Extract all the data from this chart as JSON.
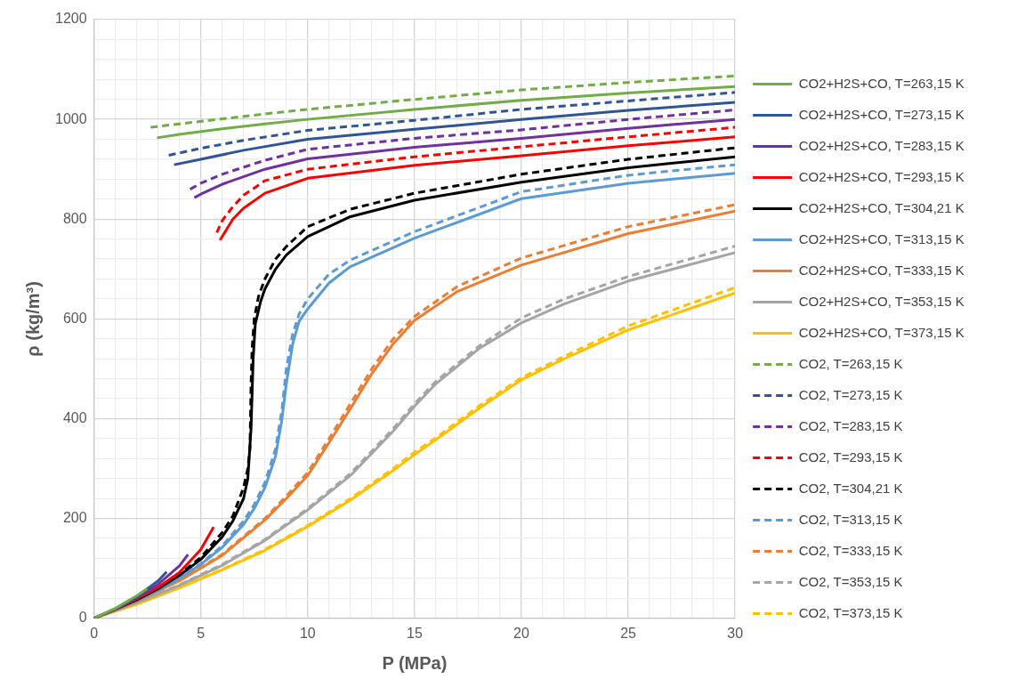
{
  "chart_data": {
    "type": "line",
    "xlabel": "P (MPa)",
    "ylabel": "ρ (kg/m³)",
    "xlim": [
      0,
      30
    ],
    "ylim": [
      0,
      1200
    ],
    "xticks": [
      0,
      {
        "value": 1,
        "label": null
      },
      {
        "value": 2,
        "label": null
      },
      {
        "value": 3,
        "label": null
      },
      {
        "value": 4,
        "label": null
      },
      5,
      {
        "value": 6,
        "label": null
      },
      {
        "value": 7,
        "label": null
      },
      {
        "value": 8,
        "label": null
      },
      {
        "value": 9,
        "label": null
      },
      10,
      {
        "value": 11,
        "label": null
      },
      {
        "value": 12,
        "label": null
      },
      {
        "value": 13,
        "label": null
      },
      {
        "value": 14,
        "label": null
      },
      15,
      {
        "value": 16,
        "label": null
      },
      {
        "value": 17,
        "label": null
      },
      {
        "value": 18,
        "label": null
      },
      {
        "value": 19,
        "label": null
      },
      20,
      {
        "value": 21,
        "label": null
      },
      {
        "value": 22,
        "label": null
      },
      {
        "value": 23,
        "label": null
      },
      {
        "value": 24,
        "label": null
      },
      25,
      {
        "value": 26,
        "label": null
      },
      {
        "value": 27,
        "label": null
      },
      {
        "value": 28,
        "label": null
      },
      {
        "value": 29,
        "label": null
      },
      30
    ],
    "yticks": [
      0,
      {
        "value": 40,
        "label": null
      },
      {
        "value": 80,
        "label": null
      },
      {
        "value": 120,
        "label": null
      },
      {
        "value": 160,
        "label": null
      },
      200,
      {
        "value": 240,
        "label": null
      },
      {
        "value": 280,
        "label": null
      },
      {
        "value": 320,
        "label": null
      },
      {
        "value": 360,
        "label": null
      },
      400,
      {
        "value": 440,
        "label": null
      },
      {
        "value": 480,
        "label": null
      },
      {
        "value": 520,
        "label": null
      },
      {
        "value": 560,
        "label": null
      },
      600,
      {
        "value": 640,
        "label": null
      },
      {
        "value": 680,
        "label": null
      },
      {
        "value": 720,
        "label": null
      },
      {
        "value": 760,
        "label": null
      },
      800,
      {
        "value": 840,
        "label": null
      },
      {
        "value": 880,
        "label": null
      },
      {
        "value": 920,
        "label": null
      },
      {
        "value": 960,
        "label": null
      },
      1000,
      {
        "value": 1040,
        "label": null
      },
      {
        "value": 1080,
        "label": null
      },
      {
        "value": 1120,
        "label": null
      },
      {
        "value": 1160,
        "label": null
      },
      1200
    ],
    "grid": true,
    "legend": "right",
    "marker": "none",
    "series": [
      {
        "name": "CO2+H2S+CO, T=263,15 K",
        "color": "#70ad47",
        "line_style": "solid",
        "x": [
          0,
          1,
          2,
          2.5,
          null,
          2.95,
          4,
          6,
          8,
          10,
          15,
          20,
          25,
          30
        ],
        "values": [
          0,
          20,
          45,
          60,
          null,
          963,
          970,
          981,
          991,
          1000,
          1020,
          1038,
          1053,
          1066
        ]
      },
      {
        "name": "CO2+H2S+CO, T=273,15 K",
        "color": "#2f5597",
        "line_style": "solid",
        "x": [
          0,
          1,
          2,
          3,
          3.4,
          null,
          3.75,
          5,
          7,
          10,
          15,
          20,
          25,
          30
        ],
        "values": [
          0,
          19,
          43,
          75,
          93,
          null,
          909,
          920,
          938,
          960,
          980,
          1000,
          1018,
          1034
        ]
      },
      {
        "name": "CO2+H2S+CO, T=283,15 K",
        "color": "#7030a0",
        "line_style": "solid",
        "x": [
          0,
          1,
          2,
          3,
          4,
          4.4,
          null,
          4.7,
          5,
          6,
          8,
          10,
          15,
          20,
          25,
          30
        ],
        "values": [
          0,
          19,
          41,
          68,
          105,
          128,
          null,
          843,
          850,
          870,
          900,
          921,
          944,
          962,
          982,
          1000
        ]
      },
      {
        "name": "CO2+H2S+CO, T=293,15 K",
        "color": "#ff0000",
        "line_style": "solid",
        "x": [
          0,
          1,
          2,
          3,
          4,
          5,
          5.6,
          null,
          5.9,
          6.5,
          7,
          8,
          10,
          15,
          20,
          25,
          30
        ],
        "values": [
          0,
          18,
          39,
          62,
          92,
          138,
          183,
          null,
          758,
          800,
          822,
          852,
          882,
          908,
          927,
          947,
          965
        ]
      },
      {
        "name": "CO2+H2S+CO, T=304,21 K",
        "color": "#000000",
        "line_style": "solid",
        "x": [
          0,
          1,
          2,
          3,
          4,
          5,
          6,
          6.5,
          7,
          7.2,
          7.35,
          7.45,
          7.55,
          7.8,
          8,
          8.5,
          9,
          10,
          12,
          15,
          20,
          25,
          30
        ],
        "values": [
          0,
          18,
          37,
          59,
          86,
          118,
          163,
          195,
          240,
          280,
          380,
          520,
          590,
          635,
          660,
          700,
          728,
          765,
          805,
          838,
          874,
          903,
          925
        ]
      },
      {
        "name": "CO2+H2S+CO, T=313,15 K",
        "color": "#5b9bd5",
        "line_style": "solid",
        "x": [
          0,
          1,
          2,
          3,
          4,
          5,
          6,
          7,
          7.5,
          8,
          8.5,
          8.8,
          9,
          9.3,
          9.6,
          10,
          11,
          12,
          15,
          20,
          25,
          30
        ],
        "values": [
          0,
          17,
          36,
          56,
          80,
          108,
          142,
          188,
          220,
          262,
          325,
          400,
          470,
          550,
          595,
          620,
          672,
          705,
          762,
          841,
          872,
          892
        ]
      },
      {
        "name": "CO2+H2S+CO, T=333,15 K",
        "color": "#ed7d31",
        "line_style": "solid",
        "x": [
          0,
          2,
          4,
          6,
          8,
          9,
          10,
          11,
          12,
          13,
          14,
          15,
          17,
          20,
          25,
          30
        ],
        "values": [
          0,
          34,
          75,
          126,
          197,
          240,
          286,
          352,
          420,
          490,
          550,
          597,
          655,
          708,
          771,
          816
        ]
      },
      {
        "name": "CO2+H2S+CO, T=353,15 K",
        "color": "#a5a5a5",
        "line_style": "solid",
        "x": [
          0,
          2,
          4,
          6,
          8,
          10,
          12,
          14,
          15,
          16,
          18,
          20,
          22,
          25,
          30
        ],
        "values": [
          0,
          31,
          66,
          106,
          156,
          217,
          286,
          375,
          425,
          470,
          540,
          592,
          630,
          676,
          733
        ]
      },
      {
        "name": "CO2+H2S+CO, T=373,15 K",
        "color": "#ffc000",
        "line_style": "solid",
        "x": [
          0,
          2,
          4,
          6,
          8,
          10,
          12,
          14,
          15,
          16,
          18,
          20,
          22,
          25,
          30
        ],
        "values": [
          0,
          28,
          61,
          97,
          136,
          184,
          237,
          296,
          328,
          358,
          420,
          478,
          520,
          578,
          652
        ]
      },
      {
        "name": "CO2, T=263,15 K",
        "color": "#70ad47",
        "line_style": "dashed",
        "x": [
          2.65,
          4,
          6,
          8,
          10,
          15,
          20,
          25,
          30
        ],
        "values": [
          984,
          991,
          1001,
          1011,
          1020,
          1040,
          1059,
          1074,
          1087
        ]
      },
      {
        "name": "CO2, T=273,15 K",
        "color": "#2f5597",
        "line_style": "dashed",
        "x": [
          3.5,
          5,
          7,
          10,
          15,
          20,
          25,
          30
        ],
        "values": [
          928,
          942,
          958,
          978,
          998,
          1020,
          1037,
          1054
        ]
      },
      {
        "name": "CO2, T=283,15 K",
        "color": "#7030a0",
        "line_style": "dashed",
        "x": [
          4.5,
          5,
          6,
          8,
          10,
          15,
          20,
          25,
          30
        ],
        "values": [
          860,
          872,
          890,
          918,
          940,
          962,
          979,
          1000,
          1019
        ]
      },
      {
        "name": "CO2, T=293,15 K",
        "color": "#ff0000",
        "line_style": "dashed",
        "x": [
          5.75,
          6,
          6.5,
          7,
          8,
          10,
          15,
          20,
          25,
          30
        ],
        "values": [
          773,
          797,
          825,
          848,
          877,
          900,
          925,
          945,
          965,
          984
        ]
      },
      {
        "name": "CO2, T=304,21 K",
        "color": "#000000",
        "line_style": "dashed",
        "x": [
          0,
          1,
          2,
          3,
          4,
          5,
          6,
          6.5,
          7,
          7.2,
          7.3,
          7.35,
          7.4,
          7.5,
          7.7,
          8,
          8.5,
          9,
          10,
          12,
          15,
          20,
          25,
          30
        ],
        "values": [
          0,
          18,
          38,
          60,
          88,
          122,
          172,
          205,
          262,
          300,
          340,
          467,
          540,
          600,
          645,
          680,
          720,
          745,
          785,
          820,
          852,
          890,
          920,
          943
        ]
      },
      {
        "name": "CO2, T=313,15 K",
        "color": "#5b9bd5",
        "line_style": "dashed",
        "x": [
          0,
          1,
          2,
          3,
          4,
          5,
          6,
          7,
          7.5,
          8,
          8.5,
          8.8,
          9,
          9.3,
          9.6,
          10,
          11,
          12,
          15,
          20,
          25,
          30
        ],
        "values": [
          0,
          18,
          36,
          57,
          81,
          110,
          145,
          195,
          228,
          272,
          340,
          420,
          500,
          570,
          610,
          640,
          690,
          718,
          775,
          855,
          888,
          909
        ]
      },
      {
        "name": "CO2, T=333,15 K",
        "color": "#ed7d31",
        "line_style": "dashed",
        "x": [
          0,
          2,
          4,
          6,
          8,
          9,
          10,
          11,
          12,
          13,
          14,
          15,
          17,
          20,
          25,
          30
        ],
        "values": [
          0,
          34,
          76,
          128,
          200,
          245,
          292,
          360,
          430,
          500,
          560,
          605,
          665,
          722,
          785,
          829
        ]
      },
      {
        "name": "CO2, T=353,15 K",
        "color": "#a5a5a5",
        "line_style": "dashed",
        "x": [
          0,
          2,
          4,
          6,
          8,
          10,
          12,
          14,
          15,
          16,
          18,
          20,
          22,
          25,
          30
        ],
        "values": [
          0,
          31,
          67,
          108,
          158,
          220,
          290,
          380,
          430,
          475,
          545,
          602,
          640,
          685,
          746
        ]
      },
      {
        "name": "CO2, T=373,15 K",
        "color": "#ffc000",
        "line_style": "dashed",
        "x": [
          0,
          2,
          4,
          6,
          8,
          10,
          12,
          14,
          15,
          16,
          18,
          20,
          22,
          25,
          30
        ],
        "values": [
          0,
          29,
          62,
          98,
          138,
          186,
          240,
          300,
          333,
          362,
          425,
          482,
          525,
          586,
          663
        ]
      }
    ]
  }
}
